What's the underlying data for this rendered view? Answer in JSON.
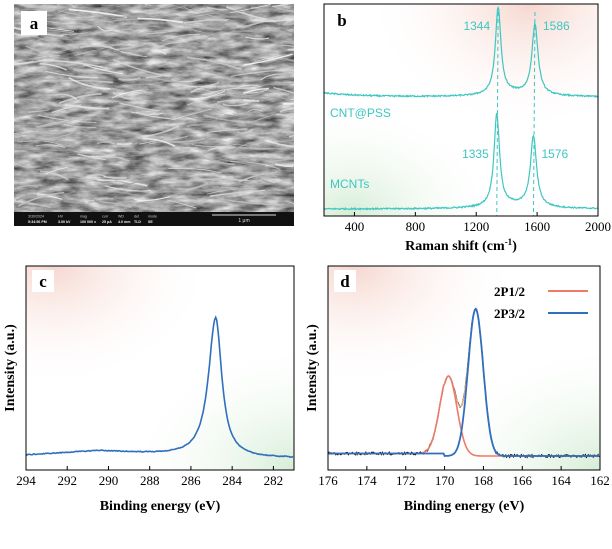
{
  "panels": {
    "a": {
      "letter": "a",
      "sem_bar": {
        "labels": [
          "3/30/2024",
          "HV",
          "mag",
          "curr",
          "WD",
          "det",
          "mode"
        ],
        "values": [
          "5:34:56 PM",
          "3.00 kV",
          "100 000 x",
          "25 pA",
          "4.0 mm",
          "TLD",
          "SE"
        ],
        "scale": "1 μm"
      }
    }
  },
  "chart_data": [
    {
      "panel": "b",
      "letter": "b",
      "type": "line",
      "xlabel": "Raman shift (cm",
      "xlabel_sup": "-1",
      "xlabel_tail": ")",
      "xlim": [
        200,
        2000
      ],
      "xticks": [
        400,
        800,
        1200,
        1600,
        2000
      ],
      "color": "#3ec6c0",
      "series": [
        {
          "name": "CNT@PSS",
          "peaks": [
            {
              "x": 1344,
              "label": "1344"
            },
            {
              "x": 1586,
              "label": "1586"
            }
          ]
        },
        {
          "name": "MCNTs",
          "peaks": [
            {
              "x": 1335,
              "label": "1335"
            },
            {
              "x": 1576,
              "label": "1576"
            }
          ]
        }
      ]
    },
    {
      "panel": "c",
      "letter": "c",
      "type": "line",
      "xlabel": "Binding energy (eV)",
      "ylabel": "Intensity (a.u.)",
      "xlim": [
        294,
        281
      ],
      "xticks": [
        294,
        292,
        290,
        288,
        286,
        284,
        282
      ],
      "color": "#2f6fbd",
      "peak": 284.8
    },
    {
      "panel": "d",
      "letter": "d",
      "type": "line",
      "xlabel": "Binding energy (eV)",
      "ylabel": "Intensity (a.u.)",
      "xlim": [
        176,
        162
      ],
      "xticks": [
        176,
        174,
        172,
        170,
        168,
        166,
        164,
        162
      ],
      "series": [
        {
          "name": "2P1/2",
          "color": "#f07a6a",
          "center": 169.8
        },
        {
          "name": "2P3/2",
          "color": "#2f6fbd",
          "center": 168.4
        }
      ]
    }
  ]
}
